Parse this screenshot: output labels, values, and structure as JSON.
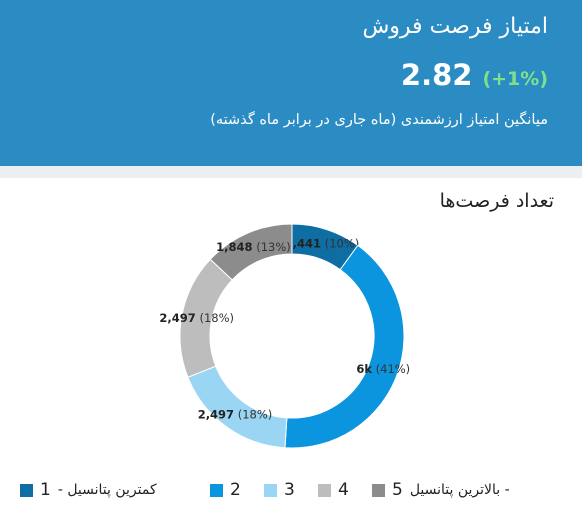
{
  "header": {
    "title": "امتیاز فرصت فروش",
    "score": "2.82",
    "delta": "(+1%)",
    "subtitle": "میانگین امتیاز ارزشمندی (ماه جاری در برابر ماه گذشته)"
  },
  "chart_title": "تعداد فرصت‌ها",
  "chart_data": {
    "type": "pie",
    "title": "تعداد فرصت‌ها",
    "slices": [
      {
        "category": "1",
        "value_label": "1,441",
        "pct_label": "(10%)",
        "percent": 10,
        "color": "#0E6DA3"
      },
      {
        "category": "2",
        "value_label": "6k",
        "pct_label": "(41%)",
        "percent": 41,
        "color": "#0A95DE"
      },
      {
        "category": "3",
        "value_label": "2,497",
        "pct_label": "(18%)",
        "percent": 18,
        "color": "#9AD5F3"
      },
      {
        "category": "4",
        "value_label": "2,497",
        "pct_label": "(18%)",
        "percent": 18,
        "color": "#BDBDBD"
      },
      {
        "category": "5",
        "value_label": "1,848",
        "pct_label": "(13%)",
        "percent": 13,
        "color": "#8C8C8C"
      }
    ]
  },
  "legend": {
    "items": [
      {
        "num": "1",
        "label": "کمترین پتانسیل -",
        "color": "#0E6DA3"
      },
      {
        "num": "2",
        "label": "",
        "color": "#0A95DE"
      },
      {
        "num": "3",
        "label": "",
        "color": "#9AD5F3"
      },
      {
        "num": "4",
        "label": "",
        "color": "#BDBDBD"
      },
      {
        "num": "5",
        "label": "- بالاترین پتانسیل",
        "color": "#8C8C8C"
      }
    ]
  }
}
